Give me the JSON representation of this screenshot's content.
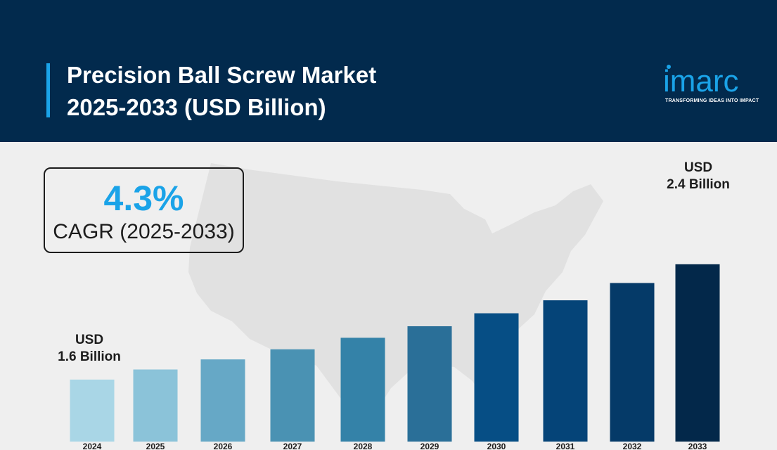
{
  "header": {
    "title_line1": "Precision Ball Screw Market",
    "title_line2": "2025-2033 (USD Billion)"
  },
  "logo": {
    "wordmark": "imarc",
    "tagline": "TRANSFORMING IDEAS INTO IMPACT"
  },
  "cagr": {
    "value": "4.3%",
    "label": "CAGR (2025-2033)"
  },
  "annotations": {
    "start": {
      "line1": "USD",
      "line2": "1.6 Billion"
    },
    "end": {
      "line1": "USD",
      "line2": "2.4 Billion"
    }
  },
  "colors": {
    "header_bg": "#022a4d",
    "accent": "#1aa3e8"
  },
  "chart_data": {
    "type": "bar",
    "title": "Precision Ball Screw Market 2025-2033 (USD Billion)",
    "categories": [
      "2024",
      "2025",
      "2026",
      "2027",
      "2028",
      "2029",
      "2030",
      "2031",
      "2032",
      "2033"
    ],
    "values": [
      1.6,
      1.67,
      1.74,
      1.81,
      1.89,
      1.97,
      2.06,
      2.15,
      2.27,
      2.4
    ],
    "bar_colors": [
      "#a9d6e6",
      "#8bc3d9",
      "#66a8c6",
      "#4a92b3",
      "#3482a8",
      "#2a6f98",
      "#064e85",
      "#054478",
      "#053a68",
      "#03284a"
    ],
    "xlabel": "",
    "ylabel": "",
    "grid": false,
    "legend": "none"
  }
}
